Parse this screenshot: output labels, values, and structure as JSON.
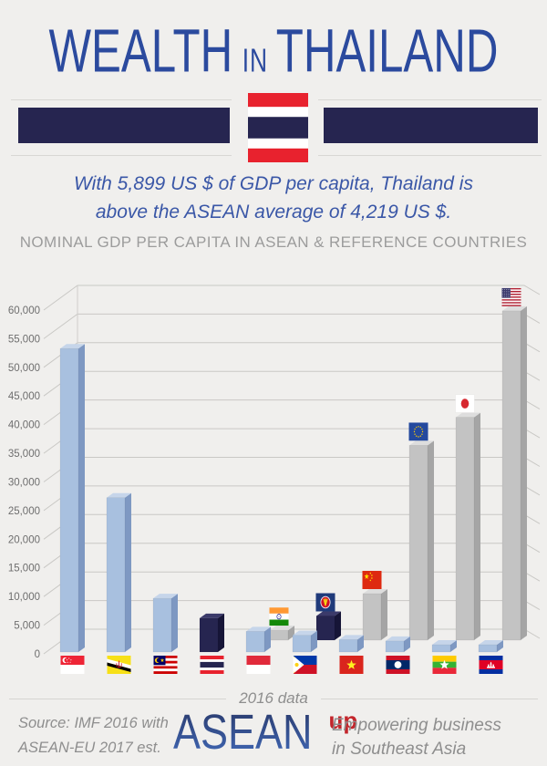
{
  "header": {
    "title_word1": "WEALTH",
    "title_connector": "IN",
    "title_word2": "THAILAND",
    "title_color": "#2B4A9E",
    "divider_bar_color": "#262550",
    "divider_flag": "thailand-flag-icon"
  },
  "intro": {
    "line1": "With 5,899 US $ of GDP per capita, Thailand is",
    "line2": "above the ASEAN average of 4,219 US $.",
    "text_color": "#3A57A7"
  },
  "section_title": "NOMINAL GDP PER CAPITA IN ASEAN & REFERENCE COUNTRIES",
  "chart_data": {
    "type": "bar",
    "title": "Nominal GDP per capita in ASEAN & reference countries",
    "note": "2016 data",
    "unit": "US $",
    "ylim": [
      0,
      60000
    ],
    "ytick_step": 5000,
    "ytick_labels": [
      "0",
      "5,000",
      "10,000",
      "15,000",
      "20,000",
      "25,000",
      "30,000",
      "35,000",
      "40,000",
      "45,000",
      "50,000",
      "55,000",
      "60,000"
    ],
    "grid": true,
    "legend": false,
    "bar_styles": {
      "asean_member": {
        "front": "#A8C0DF",
        "top": "#C6D5EA",
        "side": "#7E98C2"
      },
      "thailand_highlight": {
        "front": "#262550",
        "top": "#3B3A6A",
        "side": "#161537"
      },
      "reference": {
        "front": "#C3C3C3",
        "top": "#DDDDDD",
        "side": "#A5A5A5"
      }
    },
    "bars": [
      {
        "label": "Singapore",
        "value": 52961,
        "row": "front",
        "style": "asean_member",
        "flag": "singapore-flag-icon",
        "flag_position": "below"
      },
      {
        "label": "Brunei",
        "value": 26939,
        "row": "front",
        "style": "asean_member",
        "flag": "brunei-flag-icon",
        "flag_position": "below"
      },
      {
        "label": "Malaysia",
        "value": 9360,
        "row": "front",
        "style": "asean_member",
        "flag": "malaysia-flag-icon",
        "flag_position": "below"
      },
      {
        "label": "Thailand",
        "value": 5899,
        "row": "front",
        "style": "thailand_highlight",
        "flag": "thailand-flag-icon",
        "flag_position": "below"
      },
      {
        "label": "Indonesia",
        "value": 3604,
        "row": "front",
        "style": "asean_member",
        "flag": "indonesia-flag-icon",
        "flag_position": "below"
      },
      {
        "label": "India",
        "value": 1723,
        "row": "back",
        "style": "reference",
        "flag": "india-flag-icon",
        "flag_position": "above"
      },
      {
        "label": "Philippines",
        "value": 2924,
        "row": "front",
        "style": "asean_member",
        "flag": "philippines-flag-icon",
        "flag_position": "below"
      },
      {
        "label": "ASEAN average",
        "value": 4219,
        "row": "back",
        "style": "thailand_highlight",
        "flag": "asean-flag-icon",
        "flag_position": "above"
      },
      {
        "label": "Vietnam",
        "value": 2173,
        "row": "front",
        "style": "asean_member",
        "flag": "vietnam-flag-icon",
        "flag_position": "below"
      },
      {
        "label": "China",
        "value": 8113,
        "row": "back",
        "style": "reference",
        "flag": "china-flag-icon",
        "flag_position": "above"
      },
      {
        "label": "Laos",
        "value": 1925,
        "row": "front",
        "style": "asean_member",
        "flag": "laos-flag-icon",
        "flag_position": "below"
      },
      {
        "label": "European Union",
        "value": 34000,
        "row": "back",
        "style": "reference",
        "flag": "eu-flag-icon",
        "flag_position": "above"
      },
      {
        "label": "Myanmar",
        "value": 1269,
        "row": "front",
        "style": "asean_member",
        "flag": "myanmar-flag-icon",
        "flag_position": "below"
      },
      {
        "label": "Japan",
        "value": 38894,
        "row": "back",
        "style": "reference",
        "flag": "japan-flag-icon",
        "flag_position": "above"
      },
      {
        "label": "Cambodia",
        "value": 1270,
        "row": "front",
        "style": "asean_member",
        "flag": "cambodia-flag-icon",
        "flag_position": "below"
      },
      {
        "label": "United States",
        "value": 57466,
        "row": "back",
        "style": "reference",
        "flag": "usa-flag-icon",
        "flag_position": "above"
      }
    ]
  },
  "footer": {
    "center_note": "2016 data",
    "source_line1": "Source: IMF 2016 with",
    "source_line2": "ASEAN-EU 2017 est.",
    "logo_text": "ASEAN",
    "logo_sup": "up",
    "logo_sup_color": "#C3252B",
    "tagline_line1": "Empowering business",
    "tagline_line2": "in Southeast Asia"
  },
  "colors": {
    "background": "#F0EFED",
    "gridline": "#C9C8C5",
    "axis_label": "#6E6E6E",
    "muted_text": "#8E8E8E",
    "section_title": "#9C9C9C"
  }
}
